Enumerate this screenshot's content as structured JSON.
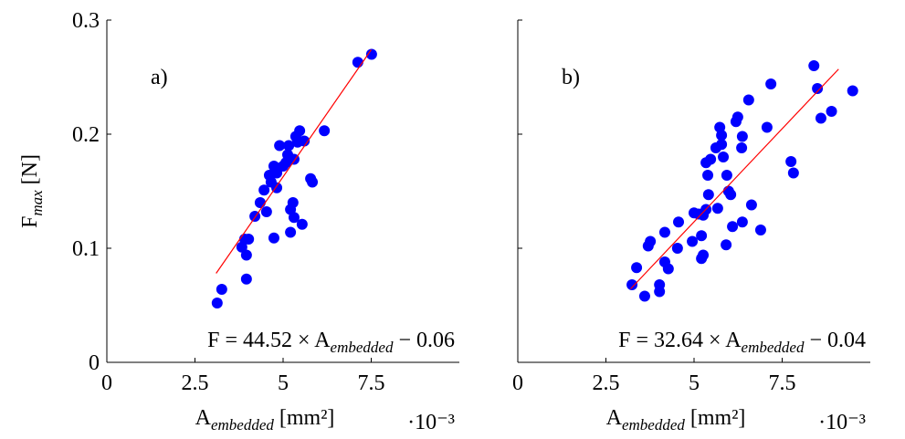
{
  "chart_data": [
    {
      "type": "scatter",
      "annotation": "a)",
      "equation": [
        "F = 44.52 × A",
        "embedded",
        " − 0.06"
      ],
      "ylabel": [
        "F",
        "max",
        " [N]"
      ],
      "xlabel": [
        "A",
        "embedded",
        " [mm²]"
      ],
      "x_multiplier": "·10⁻³",
      "color": "#0000ff",
      "show_yticklabels": true,
      "xlim": [
        0,
        10
      ],
      "ylim": [
        0,
        0.3
      ],
      "xticks": [
        0,
        2.5,
        5,
        7.5
      ],
      "yticks": [
        0,
        0.1,
        0.2,
        0.3
      ],
      "x": [
        3.13,
        3.26,
        3.83,
        3.91,
        4.02,
        3.96,
        3.96,
        4.2,
        4.35,
        4.53,
        4.46,
        4.61,
        4.66,
        4.74,
        4.74,
        4.82,
        4.82,
        4.9,
        5.0,
        5.08,
        5.13,
        5.16,
        5.21,
        5.21,
        5.28,
        5.31,
        5.31,
        5.36,
        5.41,
        5.47,
        5.54,
        5.6,
        5.78,
        5.83,
        6.17,
        7.12,
        7.51
      ],
      "y": [
        0.052,
        0.064,
        0.101,
        0.108,
        0.108,
        0.094,
        0.073,
        0.128,
        0.14,
        0.132,
        0.151,
        0.164,
        0.158,
        0.172,
        0.109,
        0.166,
        0.153,
        0.19,
        0.172,
        0.175,
        0.182,
        0.19,
        0.134,
        0.114,
        0.14,
        0.127,
        0.178,
        0.198,
        0.193,
        0.203,
        0.121,
        0.194,
        0.161,
        0.158,
        0.203,
        0.263,
        0.27
      ],
      "fit_line": {
        "x": [
          3.1,
          7.5
        ],
        "y": [
          0.078,
          0.274
        ],
        "color": "#ff0000"
      }
    },
    {
      "type": "scatter",
      "annotation": "b)",
      "equation": [
        "F = 32.64 × A",
        "embedded",
        " − 0.04"
      ],
      "xlabel": [
        "A",
        "embedded",
        " [mm²]"
      ],
      "x_multiplier": "·10⁻³",
      "color": "#0000ff",
      "show_yticklabels": false,
      "xlim": [
        0,
        10
      ],
      "ylim": [
        0,
        0.3
      ],
      "xticks": [
        0,
        2.5,
        5,
        7.5
      ],
      "yticks": [
        0,
        0.1,
        0.2,
        0.3
      ],
      "x": [
        8.4,
        8.5,
        8.6,
        8.9,
        9.5,
        7.75,
        7.82,
        7.07,
        7.18,
        6.55,
        6.63,
        6.89,
        6.37,
        6.37,
        6.35,
        6.24,
        6.19,
        5.91,
        6.04,
        5.98,
        6.09,
        5.93,
        5.83,
        5.78,
        5.78,
        5.73,
        5.67,
        5.62,
        5.47,
        5.41,
        5.39,
        5.34,
        5.34,
        5.26,
        5.21,
        5.13,
        5.21,
        5.26,
        5.0,
        4.95,
        4.56,
        4.53,
        4.17,
        4.27,
        4.17,
        3.76,
        3.7,
        3.37,
        3.24,
        3.6,
        4.02,
        4.02
      ],
      "y": [
        0.26,
        0.24,
        0.214,
        0.22,
        0.238,
        0.176,
        0.166,
        0.206,
        0.244,
        0.23,
        0.138,
        0.116,
        0.123,
        0.198,
        0.188,
        0.215,
        0.211,
        0.103,
        0.147,
        0.15,
        0.119,
        0.164,
        0.18,
        0.191,
        0.199,
        0.206,
        0.135,
        0.188,
        0.178,
        0.147,
        0.164,
        0.175,
        0.134,
        0.129,
        0.111,
        0.13,
        0.091,
        0.094,
        0.131,
        0.106,
        0.123,
        0.1,
        0.114,
        0.082,
        0.088,
        0.106,
        0.102,
        0.083,
        0.068,
        0.058,
        0.068,
        0.062
      ],
      "fit_line": {
        "x": [
          3.2,
          9.1
        ],
        "y": [
          0.0644,
          0.257
        ],
        "color": "#ff0000"
      }
    }
  ]
}
